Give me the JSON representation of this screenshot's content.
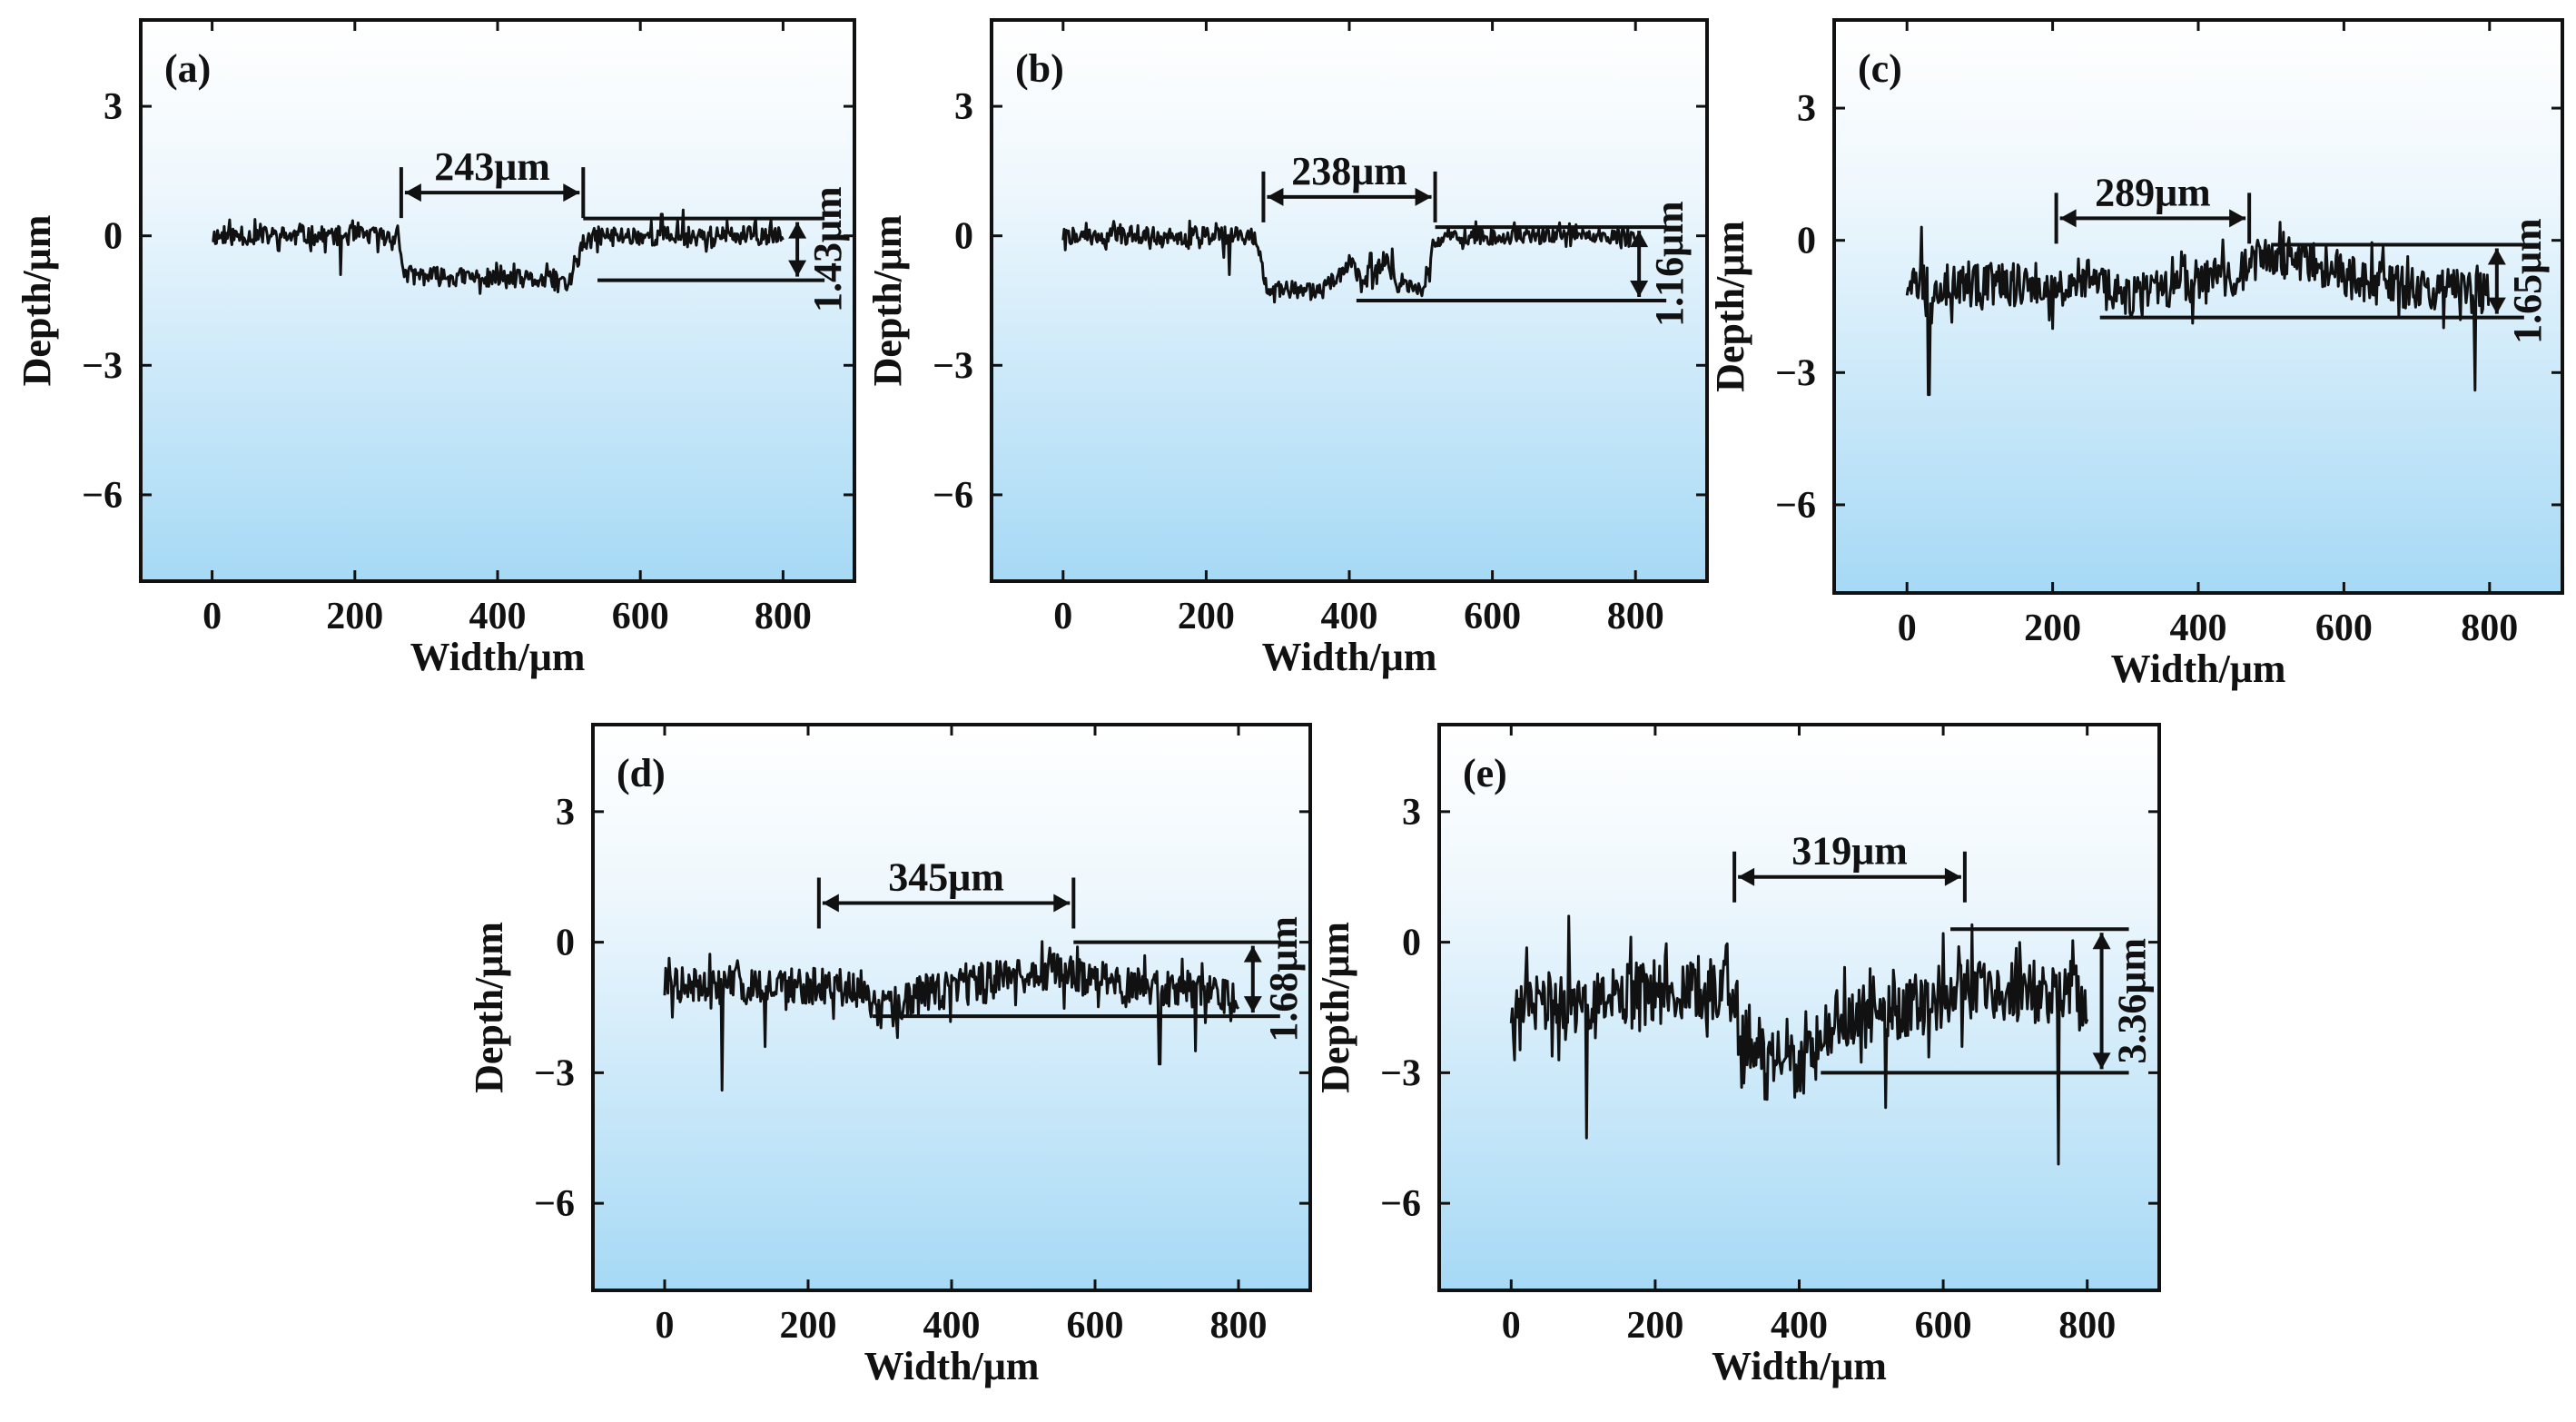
{
  "figure": {
    "panels": [
      "a",
      "b",
      "c",
      "d",
      "e"
    ]
  },
  "chart_data": [
    {
      "type": "line",
      "label": "(a)",
      "xlabel": "Width/μm",
      "ylabel": "Depth/μm",
      "xlim": [
        -100,
        900
      ],
      "ylim": [
        -8,
        5
      ],
      "xticks": [
        "0",
        "200",
        "400",
        "600",
        "800"
      ],
      "xtick_values": [
        0,
        200,
        400,
        600,
        800
      ],
      "yticks": [
        "3",
        "0",
        "−3",
        "−6"
      ],
      "ytick_values": [
        3,
        0,
        -3,
        -6
      ],
      "profile": {
        "x_start": 0,
        "x_end": 800,
        "segments": [
          [
            0,
            0.0
          ],
          [
            260,
            0.0
          ],
          [
            270,
            -0.9
          ],
          [
            330,
            -0.95
          ],
          [
            420,
            -1.0
          ],
          [
            480,
            -1.05
          ],
          [
            500,
            -1.1
          ],
          [
            520,
            -0.2
          ],
          [
            540,
            0.0
          ],
          [
            800,
            0.0
          ]
        ],
        "noise": 0.22,
        "spikes": [
          [
            180,
            -0.9
          ],
          [
            485,
            -1.3
          ],
          [
            630,
            0.5
          ],
          [
            660,
            0.6
          ]
        ],
        "seed": 11
      },
      "width_annotation": {
        "text": "243μm",
        "x1": 265,
        "x2": 520,
        "y": 1.0
      },
      "depth_annotation": {
        "text": "1.43μm",
        "top": 0.4,
        "bottom": -1.03,
        "x": 820,
        "line_left_top": 520,
        "line_left_bottom": 540
      }
    },
    {
      "type": "line",
      "label": "(b)",
      "xlabel": "Width/μm",
      "ylabel": "Depth/μm",
      "xlim": [
        -100,
        900
      ],
      "ylim": [
        -8,
        5
      ],
      "xticks": [
        "0",
        "200",
        "400",
        "600",
        "800"
      ],
      "xtick_values": [
        0,
        200,
        400,
        600,
        800
      ],
      "yticks": [
        "3",
        "0",
        "−3",
        "−6"
      ],
      "ytick_values": [
        3,
        0,
        -3,
        -6
      ],
      "profile": {
        "x_start": 0,
        "x_end": 800,
        "segments": [
          [
            0,
            0.0
          ],
          [
            200,
            0.0
          ],
          [
            270,
            0.0
          ],
          [
            285,
            -1.2
          ],
          [
            360,
            -1.3
          ],
          [
            400,
            -0.6
          ],
          [
            420,
            -1.2
          ],
          [
            450,
            -0.5
          ],
          [
            470,
            -1.2
          ],
          [
            505,
            -1.3
          ],
          [
            520,
            -0.1
          ],
          [
            540,
            0.0
          ],
          [
            800,
            0.0
          ]
        ],
        "noise": 0.2,
        "spikes": [
          [
            225,
            -0.5
          ],
          [
            232,
            -0.9
          ],
          [
            430,
            -0.4
          ],
          [
            460,
            -0.3
          ]
        ],
        "seed": 22
      },
      "width_annotation": {
        "text": "238μm",
        "x1": 280,
        "x2": 520,
        "y": 0.9
      },
      "depth_annotation": {
        "text": "1.16μm",
        "top": 0.2,
        "bottom": -1.5,
        "x": 805,
        "line_left_top": 520,
        "line_left_bottom": 410
      }
    },
    {
      "type": "line",
      "label": "(c)",
      "xlabel": "Width/μm",
      "ylabel": "Depth/μm",
      "xlim": [
        -100,
        900
      ],
      "ylim": [
        -8,
        5
      ],
      "xticks": [
        "0",
        "200",
        "400",
        "600",
        "800"
      ],
      "xtick_values": [
        0,
        200,
        400,
        600,
        800
      ],
      "yticks": [
        "3",
        "0",
        "−3",
        "−6"
      ],
      "ytick_values": [
        3,
        0,
        -3,
        -6
      ],
      "profile": {
        "x_start": 0,
        "x_end": 800,
        "segments": [
          [
            0,
            -1.0
          ],
          [
            150,
            -1.0
          ],
          [
            250,
            -0.9
          ],
          [
            300,
            -1.3
          ],
          [
            400,
            -1.0
          ],
          [
            450,
            -0.8
          ],
          [
            500,
            -0.3
          ],
          [
            560,
            -0.5
          ],
          [
            650,
            -1.0
          ],
          [
            800,
            -1.2
          ]
        ],
        "noise": 0.5,
        "spikes": [
          [
            30,
            -3.5
          ],
          [
            20,
            0.3
          ],
          [
            200,
            -2.0
          ],
          [
            780,
            -3.4
          ],
          [
            760,
            -1.8
          ]
        ],
        "seed": 33
      },
      "width_annotation": {
        "text": "289μm",
        "x1": 205,
        "x2": 470,
        "y": 0.5
      },
      "depth_annotation": {
        "text": "1.65μm",
        "top": -0.1,
        "bottom": -1.75,
        "x": 810,
        "line_left_top": 500,
        "line_left_bottom": 265
      }
    },
    {
      "type": "line",
      "label": "(d)",
      "xlabel": "Width/μm",
      "ylabel": "Depth/μm",
      "xlim": [
        -100,
        900
      ],
      "ylim": [
        -8,
        5
      ],
      "xticks": [
        "0",
        "200",
        "400",
        "600",
        "800"
      ],
      "xtick_values": [
        0,
        200,
        400,
        600,
        800
      ],
      "yticks": [
        "3",
        "0",
        "−3",
        "−6"
      ],
      "ytick_values": [
        3,
        0,
        -3,
        -6
      ],
      "profile": {
        "x_start": 0,
        "x_end": 800,
        "segments": [
          [
            0,
            -1.0
          ],
          [
            200,
            -1.0
          ],
          [
            260,
            -1.1
          ],
          [
            300,
            -1.6
          ],
          [
            360,
            -1.2
          ],
          [
            450,
            -0.9
          ],
          [
            550,
            -0.7
          ],
          [
            650,
            -1.0
          ],
          [
            800,
            -1.2
          ]
        ],
        "noise": 0.45,
        "spikes": [
          [
            80,
            -3.4
          ],
          [
            140,
            -2.4
          ],
          [
            690,
            -2.8
          ],
          [
            740,
            -2.5
          ]
        ],
        "seed": 44
      },
      "width_annotation": {
        "text": "345μm",
        "x1": 215,
        "x2": 570,
        "y": 0.9
      },
      "depth_annotation": {
        "text": "1.68μm",
        "top": 0.0,
        "bottom": -1.7,
        "x": 820,
        "line_left_top": 570,
        "line_left_bottom": 290
      }
    },
    {
      "type": "line",
      "label": "(e)",
      "xlabel": "Width/μm",
      "ylabel": "Depth/μm",
      "xlim": [
        -100,
        900
      ],
      "ylim": [
        -8,
        5
      ],
      "xticks": [
        "0",
        "200",
        "400",
        "600",
        "800"
      ],
      "xtick_values": [
        0,
        200,
        400,
        600,
        800
      ],
      "yticks": [
        "3",
        "0",
        "−3",
        "−6"
      ],
      "ytick_values": [
        3,
        0,
        -3,
        -6
      ],
      "profile": {
        "x_start": 0,
        "x_end": 800,
        "segments": [
          [
            0,
            -1.5
          ],
          [
            300,
            -1.0
          ],
          [
            320,
            -2.0
          ],
          [
            400,
            -3.0
          ],
          [
            450,
            -1.8
          ],
          [
            550,
            -1.5
          ],
          [
            650,
            -1.0
          ],
          [
            800,
            -1.2
          ]
        ],
        "noise": 0.75,
        "spikes": [
          [
            105,
            -4.5
          ],
          [
            80,
            0.6
          ],
          [
            520,
            -3.8
          ],
          [
            760,
            -5.1
          ],
          [
            600,
            0.2
          ],
          [
            640,
            0.4
          ]
        ],
        "seed": 55
      },
      "width_annotation": {
        "text": "319μm",
        "x1": 310,
        "x2": 630,
        "y": 1.5
      },
      "depth_annotation": {
        "text": "3.36μm",
        "top": 0.3,
        "bottom": -3.0,
        "x": 820,
        "line_left_top": 610,
        "line_left_bottom": 430
      }
    }
  ]
}
